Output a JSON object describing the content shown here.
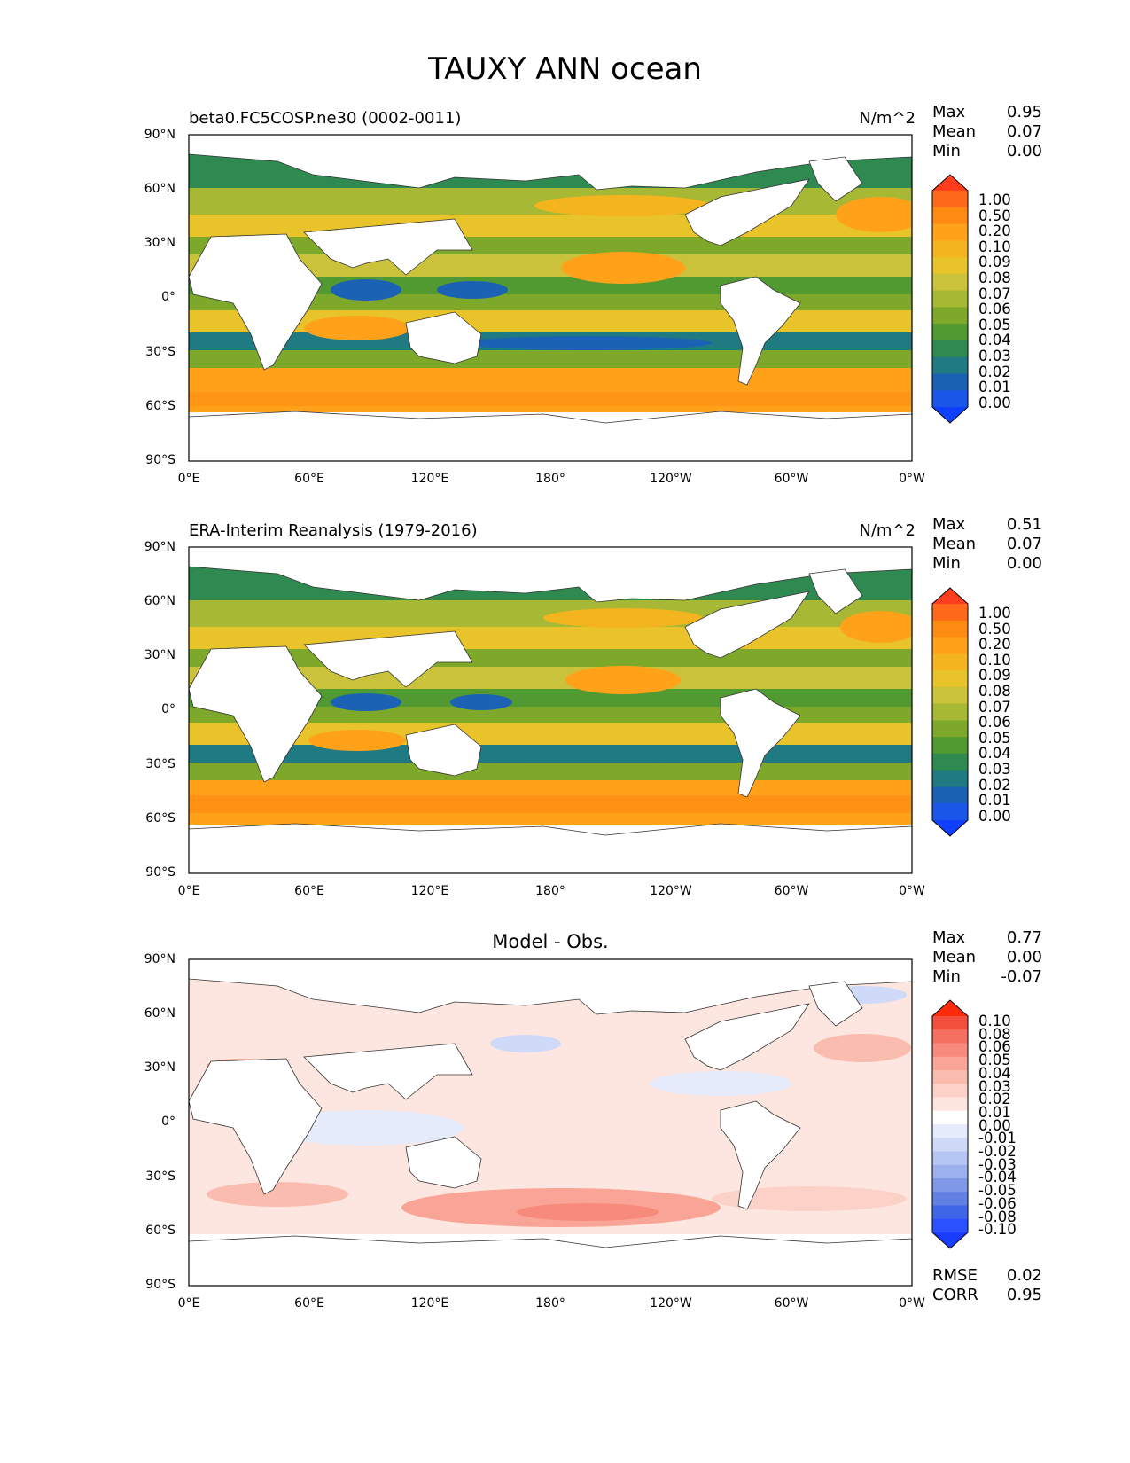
{
  "title": "TAUXY ANN ocean",
  "x_ticks": [
    "0°E",
    "60°E",
    "120°E",
    "180°",
    "120°W",
    "60°W",
    "0°W"
  ],
  "y_ticks": [
    "90°N",
    "60°N",
    "30°N",
    "0°",
    "30°S",
    "60°S",
    "90°S"
  ],
  "stat_labels": {
    "max": "Max",
    "mean": "Mean",
    "min": "Min",
    "rmse": "RMSE",
    "corr": "CORR"
  },
  "colorbar_main": {
    "labels": [
      "1.00",
      "0.50",
      "0.20",
      "0.10",
      "0.09",
      "0.08",
      "0.07",
      "0.06",
      "0.05",
      "0.04",
      "0.03",
      "0.02",
      "0.01",
      "0.00"
    ],
    "colors": [
      "#ff3c1e",
      "#ff6a1a",
      "#ff8a12",
      "#ffa21a",
      "#f4b41e",
      "#e8c32a",
      "#c9c23a",
      "#a6b834",
      "#7ea82a",
      "#519a32",
      "#2e8a50",
      "#1f7a82",
      "#1c62b4",
      "#1a56e8",
      "#0f40ff"
    ]
  },
  "colorbar_diff": {
    "labels": [
      "0.10",
      "0.08",
      "0.06",
      "0.05",
      "0.04",
      "0.03",
      "0.02",
      "0.01",
      "0.00",
      "-0.01",
      "-0.02",
      "-0.03",
      "-0.04",
      "-0.05",
      "-0.06",
      "-0.08",
      "-0.10"
    ],
    "colors": [
      "#ff2a0a",
      "#f2503c",
      "#f57060",
      "#f78a7a",
      "#f9a496",
      "#fbbcb0",
      "#fcd2c8",
      "#fde6e0",
      "#ffffff",
      "#e6ecfc",
      "#cfdaf8",
      "#b6c6f4",
      "#9cb0ee",
      "#8098e8",
      "#6280e4",
      "#4066e8",
      "#2a50ff",
      "#1a3cff"
    ]
  },
  "panels": [
    {
      "title": "beta0.FC5COSP.ne30 (0002-0011)",
      "units": "N/m^2",
      "stats": {
        "max": "0.95",
        "mean": "0.07",
        "min": "0.00"
      }
    },
    {
      "title": "ERA-Interim Reanalysis (1979-2016)",
      "units": "N/m^2",
      "stats": {
        "max": "0.51",
        "mean": "0.07",
        "min": "0.00"
      }
    },
    {
      "title": "Model - Obs.",
      "stats": {
        "max": "0.77",
        "mean": "0.00",
        "min": "-0.07",
        "rmse": "0.02",
        "corr": "0.95"
      }
    }
  ]
}
